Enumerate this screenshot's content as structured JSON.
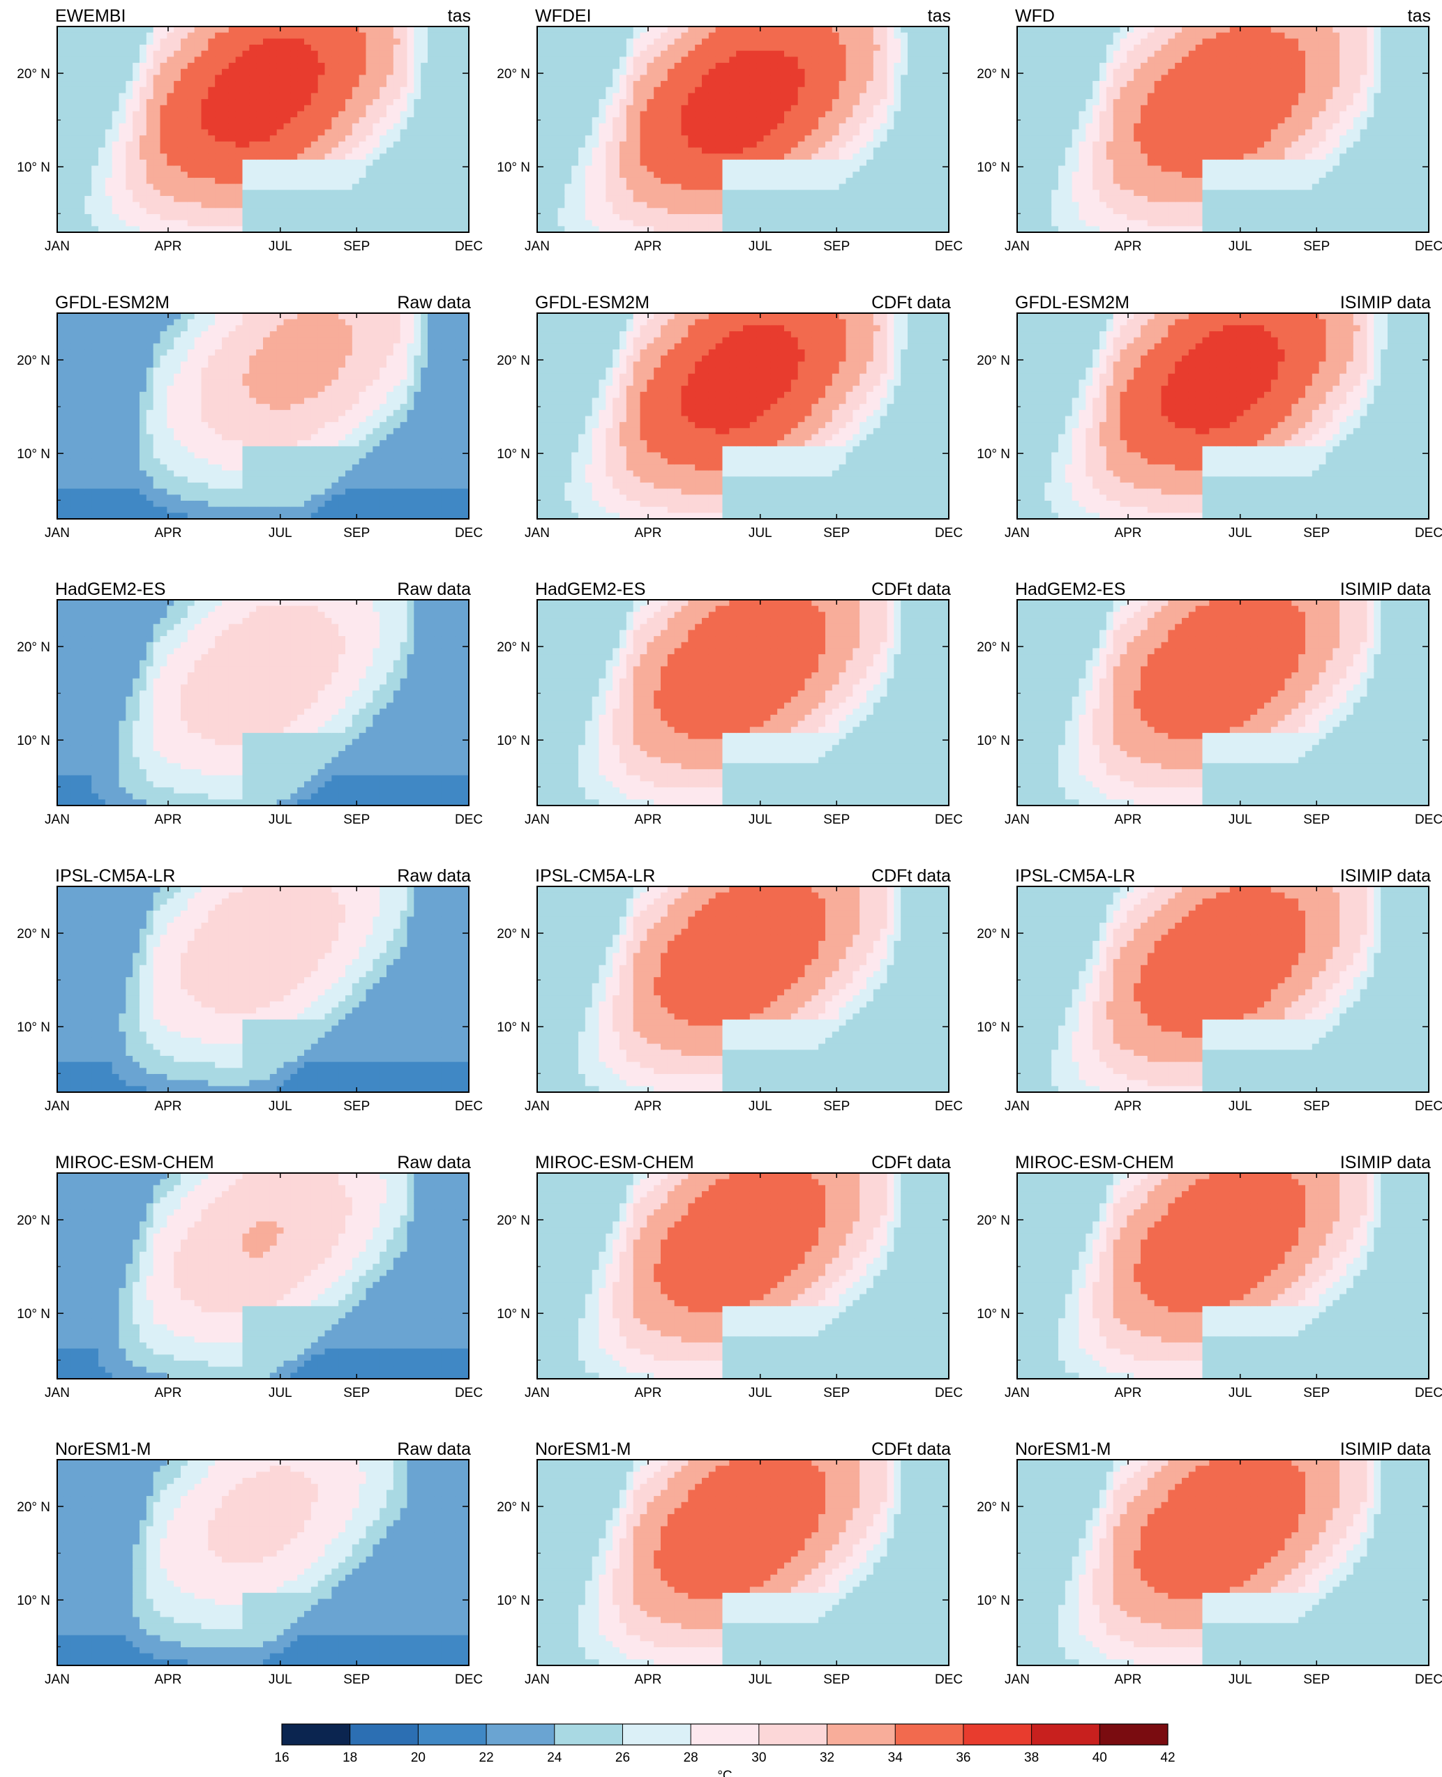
{
  "figure": {
    "description_units": "°C",
    "month_ticks": [
      "JAN",
      "APR",
      "JUL",
      "SEP",
      "DEC"
    ],
    "lat_ticks": [
      "20° N",
      "10° N"
    ],
    "colorbar": {
      "levels": [
        16,
        18,
        20,
        22,
        24,
        26,
        28,
        30,
        32,
        34,
        36,
        38,
        40,
        42
      ],
      "colors": [
        "#0b2550",
        "#2c6fb3",
        "#4088c5",
        "#6aa4d2",
        "#a9d9e3",
        "#dbf0f7",
        "#fde8ee",
        "#fcd7d8",
        "#f8ad9a",
        "#f26a4e",
        "#e83c2e",
        "#c8201e",
        "#7a0c10"
      ],
      "unit": "°C"
    }
  },
  "chart_data": {
    "type": "heatmap",
    "x_axis": "month",
    "y_axis": "latitude (°N)",
    "ylim": [
      3,
      25
    ],
    "xlim": [
      "JAN",
      "DEC"
    ],
    "panels": [
      {
        "title": "EWEMBI",
        "tag": "tas",
        "peak_c": 37,
        "peak_month": "JUN",
        "peak_lat": 18,
        "cool_bias": 0
      },
      {
        "title": "WFDEI",
        "tag": "tas",
        "peak_c": 37,
        "peak_month": "JUN",
        "peak_lat": 17,
        "cool_bias": 0
      },
      {
        "title": "WFD",
        "tag": "tas",
        "peak_c": 36,
        "peak_month": "JUN",
        "peak_lat": 17,
        "cool_bias": 0
      },
      {
        "title": "GFDL-ESM2M",
        "tag": "Raw data",
        "peak_c": 34,
        "peak_month": "JUL",
        "peak_lat": 20,
        "cool_bias": 2
      },
      {
        "title": "GFDL-ESM2M",
        "tag": "CDFt data",
        "peak_c": 37,
        "peak_month": "JUN",
        "peak_lat": 18,
        "cool_bias": 0
      },
      {
        "title": "GFDL-ESM2M",
        "tag": "ISIMIP data",
        "peak_c": 37,
        "peak_month": "JUN",
        "peak_lat": 18,
        "cool_bias": 0
      },
      {
        "title": "HadGEM2-ES",
        "tag": "Raw data",
        "peak_c": 33,
        "peak_month": "JUN",
        "peak_lat": 17,
        "cool_bias": 2
      },
      {
        "title": "HadGEM2-ES",
        "tag": "CDFt data",
        "peak_c": 36,
        "peak_month": "JUN",
        "peak_lat": 18,
        "cool_bias": 0
      },
      {
        "title": "HadGEM2-ES",
        "tag": "ISIMIP data",
        "peak_c": 36,
        "peak_month": "JUN",
        "peak_lat": 18,
        "cool_bias": 0
      },
      {
        "title": "IPSL-CM5A-LR",
        "tag": "Raw data",
        "peak_c": 33,
        "peak_month": "JUN",
        "peak_lat": 19,
        "cool_bias": 2
      },
      {
        "title": "IPSL-CM5A-LR",
        "tag": "CDFt data",
        "peak_c": 36,
        "peak_month": "JUN",
        "peak_lat": 18,
        "cool_bias": 0
      },
      {
        "title": "IPSL-CM5A-LR",
        "tag": "ISIMIP data",
        "peak_c": 36,
        "peak_month": "JUN",
        "peak_lat": 17,
        "cool_bias": 0
      },
      {
        "title": "MIROC-ESM-CHEM",
        "tag": "Raw data",
        "peak_c": 33,
        "peak_month": "JUN",
        "peak_lat": 18,
        "cool_bias": 1.5
      },
      {
        "title": "MIROC-ESM-CHEM",
        "tag": "CDFt data",
        "peak_c": 36,
        "peak_month": "JUN",
        "peak_lat": 18,
        "cool_bias": 0
      },
      {
        "title": "MIROC-ESM-CHEM",
        "tag": "ISIMIP data",
        "peak_c": 36,
        "peak_month": "JUN",
        "peak_lat": 18,
        "cool_bias": 0
      },
      {
        "title": "NorESM1-M",
        "tag": "Raw data",
        "peak_c": 32,
        "peak_month": "JUN",
        "peak_lat": 19,
        "cool_bias": 2
      },
      {
        "title": "NorESM1-M",
        "tag": "CDFt data",
        "peak_c": 36,
        "peak_month": "JUN",
        "peak_lat": 18,
        "cool_bias": 0
      },
      {
        "title": "NorESM1-M",
        "tag": "ISIMIP data",
        "peak_c": 36,
        "peak_month": "JUN",
        "peak_lat": 18,
        "cool_bias": 0
      }
    ]
  }
}
